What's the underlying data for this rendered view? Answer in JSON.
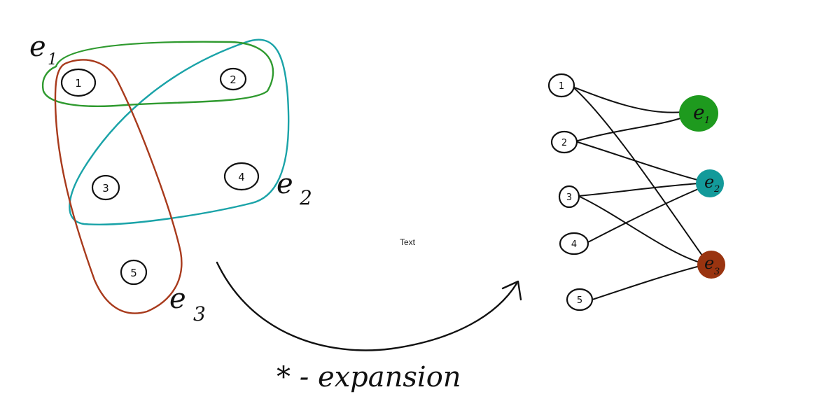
{
  "hypergraph": {
    "vertices": [
      "1",
      "2",
      "3",
      "4",
      "5"
    ],
    "hyperedges": [
      {
        "label_base": "e",
        "label_sub": "1",
        "color": "#2f9a2f",
        "members": [
          "1",
          "2"
        ]
      },
      {
        "label_base": "e",
        "label_sub": "2",
        "color": "#1aa3a8",
        "members": [
          "2",
          "3",
          "4"
        ]
      },
      {
        "label_base": "e",
        "label_sub": "3",
        "color": "#a83a1c",
        "members": [
          "1",
          "3",
          "5"
        ]
      }
    ]
  },
  "bipartite": {
    "vertices": [
      "1",
      "2",
      "3",
      "4",
      "5"
    ],
    "edge_nodes": [
      {
        "label_base": "e",
        "label_sub": "1",
        "color": "#1e9a1e"
      },
      {
        "label_base": "e",
        "label_sub": "2",
        "color": "#139a9a"
      },
      {
        "label_base": "e",
        "label_sub": "3",
        "color": "#9a3410"
      }
    ],
    "links": [
      [
        "1",
        "e1"
      ],
      [
        "1",
        "e3"
      ],
      [
        "2",
        "e1"
      ],
      [
        "2",
        "e2"
      ],
      [
        "3",
        "e2"
      ],
      [
        "3",
        "e3"
      ],
      [
        "4",
        "e2"
      ],
      [
        "5",
        "e3"
      ]
    ]
  },
  "center_text": "Text",
  "caption": "* - expansion",
  "colors": {
    "ink": "#111111",
    "e1": "#2f9a2f",
    "e2": "#1aa3a8",
    "e3": "#a83a1c"
  }
}
